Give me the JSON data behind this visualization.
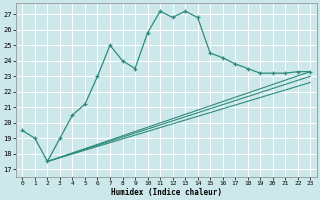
{
  "title": "",
  "xlabel": "Humidex (Indice chaleur)",
  "bg_color": "#cde8ea",
  "grid_color": "#ffffff",
  "line_color": "#2e8b7a",
  "xlim": [
    -0.5,
    23.5
  ],
  "ylim": [
    16.5,
    27.7
  ],
  "yticks": [
    17,
    18,
    19,
    20,
    21,
    22,
    23,
    24,
    25,
    26,
    27
  ],
  "xticks": [
    0,
    1,
    2,
    3,
    4,
    5,
    6,
    7,
    8,
    9,
    10,
    11,
    12,
    13,
    14,
    15,
    16,
    17,
    18,
    19,
    20,
    21,
    22,
    23
  ],
  "series1_x": [
    0,
    1,
    2,
    3,
    4,
    5,
    6,
    7,
    8,
    9,
    10,
    11,
    12,
    13,
    14,
    15,
    16,
    17,
    18,
    19,
    20,
    21,
    22,
    23
  ],
  "series1_y": [
    19.5,
    19.0,
    17.5,
    19.0,
    20.5,
    21.2,
    23.0,
    25.0,
    24.0,
    23.5,
    25.8,
    27.2,
    26.8,
    27.2,
    26.8,
    24.5,
    24.2,
    23.8,
    23.5,
    23.2,
    23.2,
    23.2,
    23.3,
    23.3
  ],
  "series2_x": [
    2,
    23
  ],
  "series2_y": [
    17.5,
    23.3
  ],
  "series3_x": [
    2,
    23
  ],
  "series3_y": [
    17.5,
    23.0
  ],
  "series4_x": [
    2,
    23
  ],
  "series4_y": [
    17.5,
    22.6
  ]
}
